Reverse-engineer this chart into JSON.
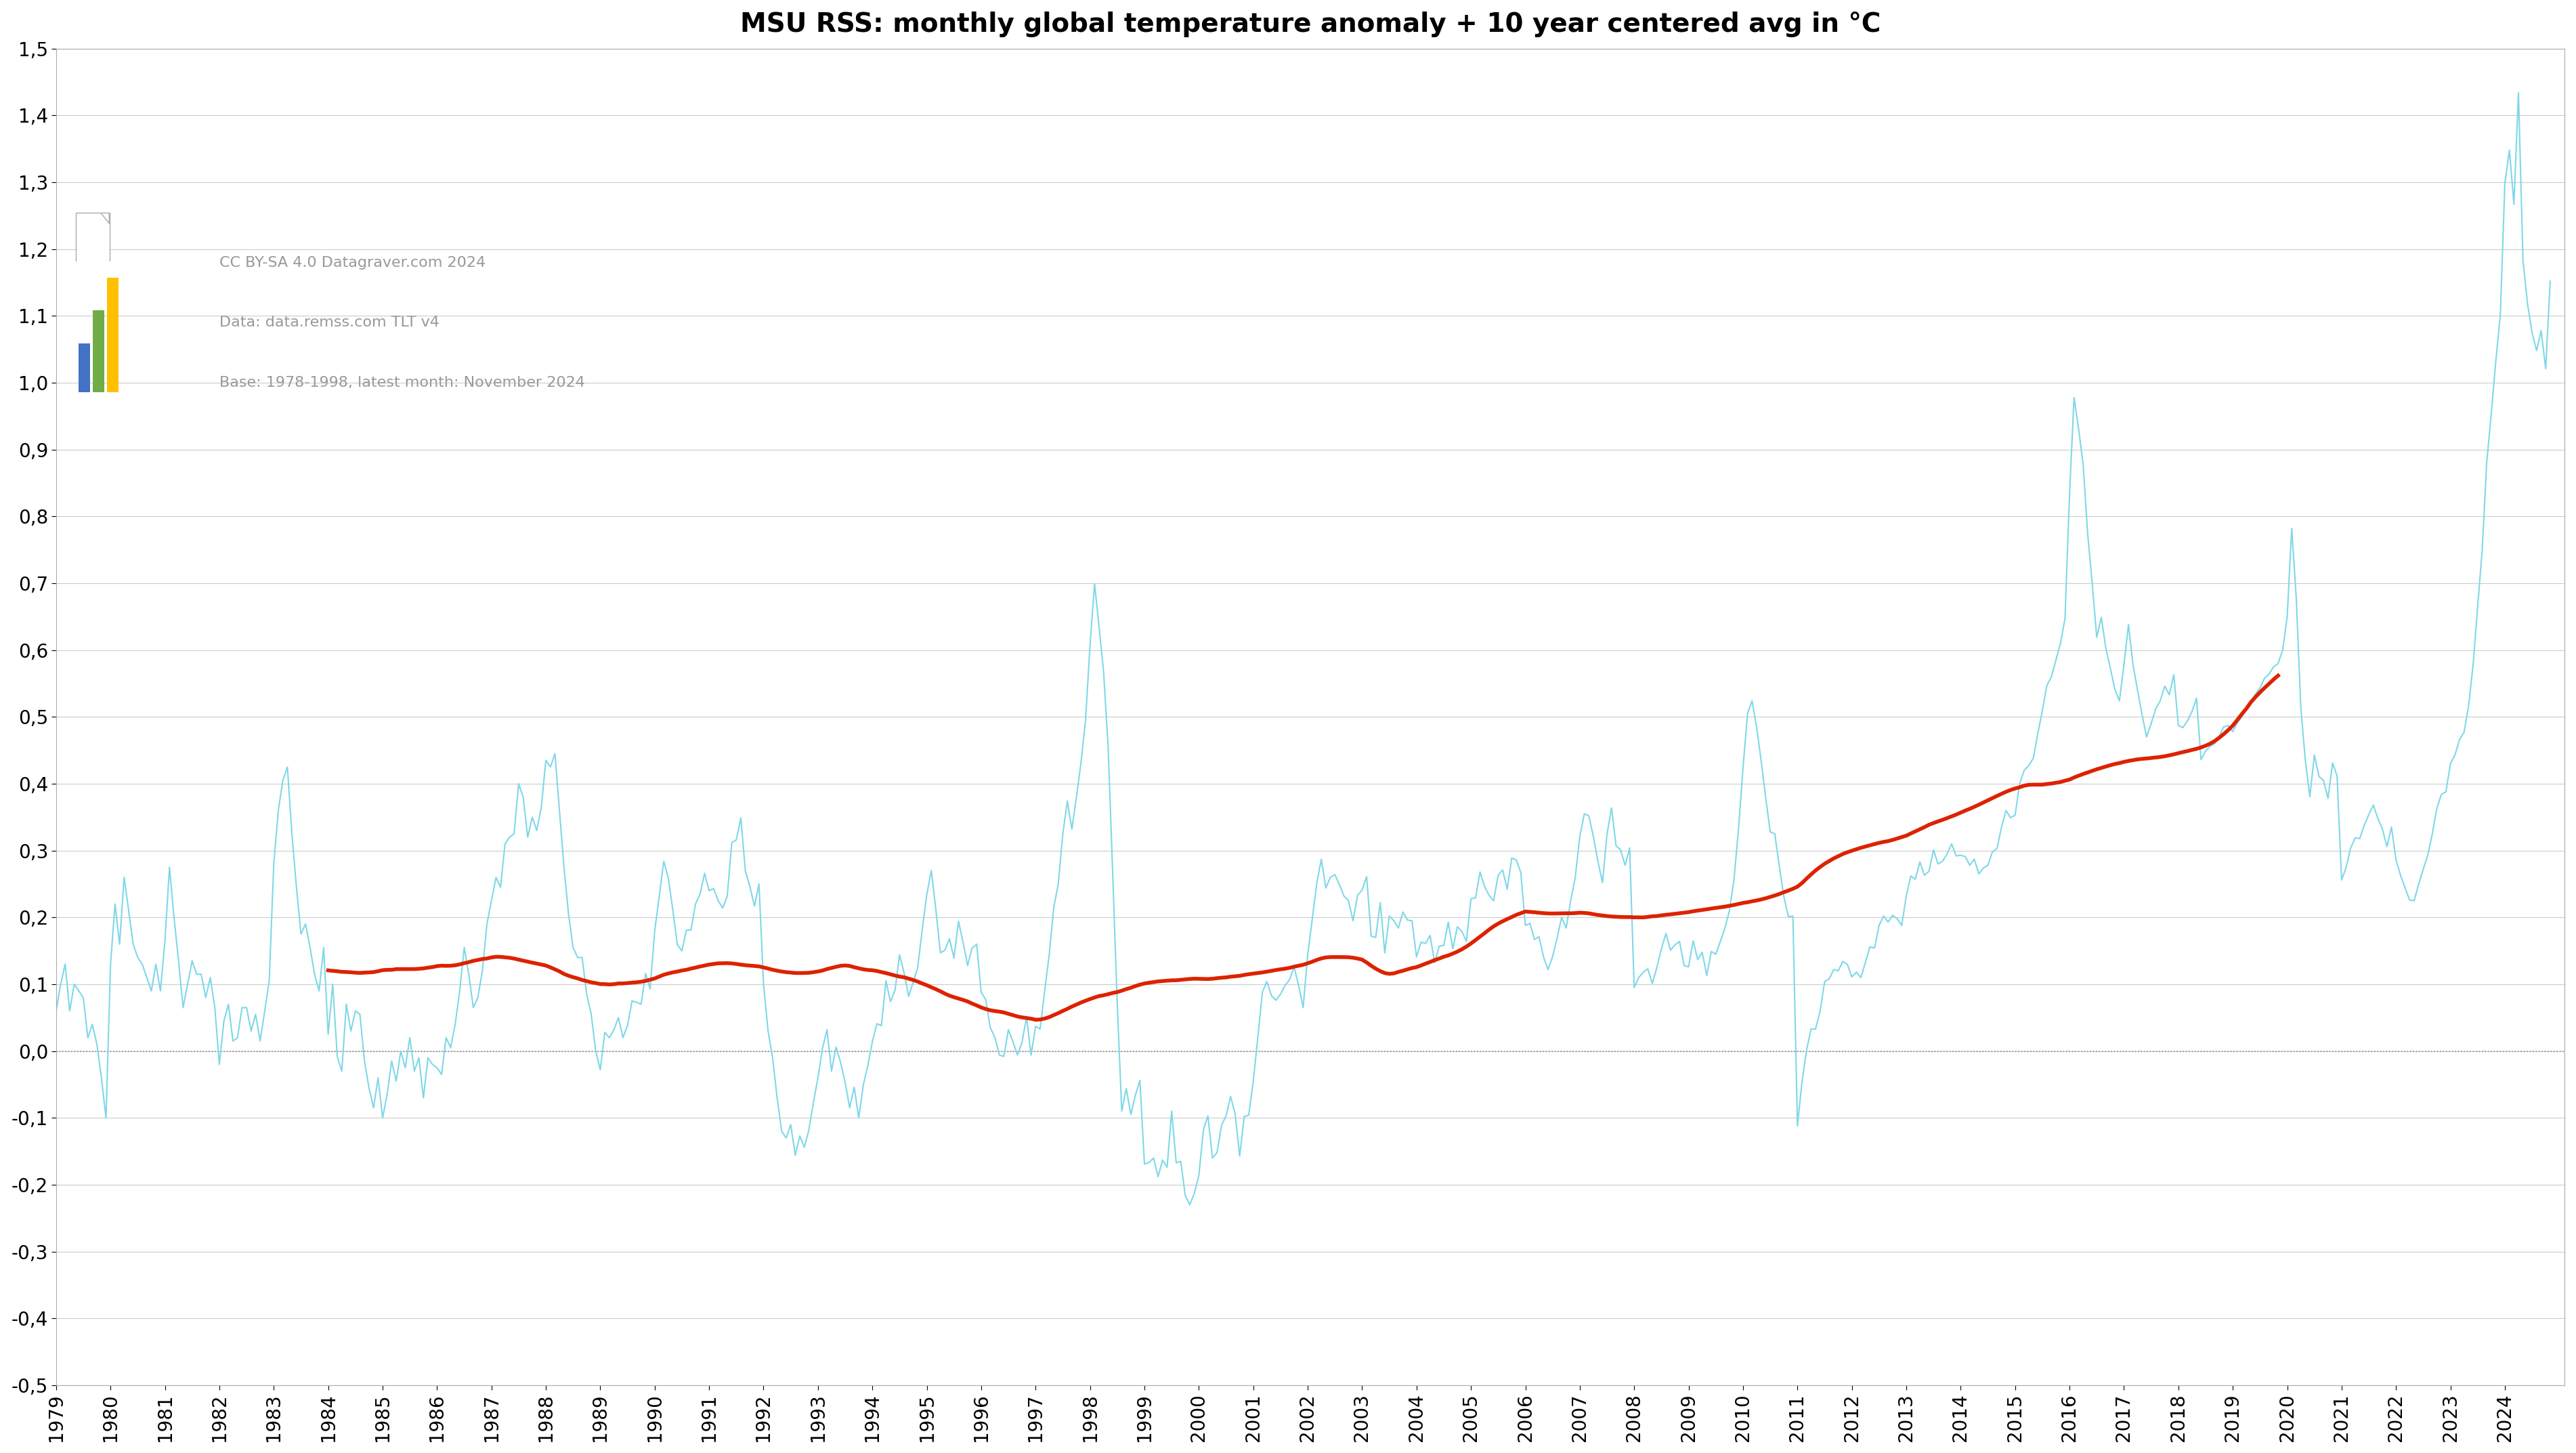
{
  "title": "MSU RSS: monthly global temperature anomaly + 10 year centered avg in °C",
  "annotation_line1": "CC BY-SA 4.0 Datagraver.com 2024",
  "annotation_line2": "Data: data.remss.com TLT v4",
  "annotation_line3": "Base: 1978-1998, latest month: November 2024",
  "monthly_color": "#7FD8E8",
  "avg_color": "#DD2200",
  "zero_line_color": "#888888",
  "grid_color": "#cccccc",
  "background_color": "#ffffff",
  "ylim": [
    -0.5,
    1.5
  ],
  "yticks": [
    -0.5,
    -0.4,
    -0.3,
    -0.2,
    -0.1,
    0.0,
    0.1,
    0.2,
    0.3,
    0.4,
    0.5,
    0.6,
    0.7,
    0.8,
    0.9,
    1.0,
    1.1,
    1.2,
    1.3,
    1.4,
    1.5
  ],
  "title_fontsize": 28,
  "annotation_fontsize": 16,
  "tick_fontsize": 20,
  "monthly_linewidth": 1.5,
  "avg_linewidth": 4.0,
  "xlim_start": 1979.0,
  "xlim_end": 2025.1
}
